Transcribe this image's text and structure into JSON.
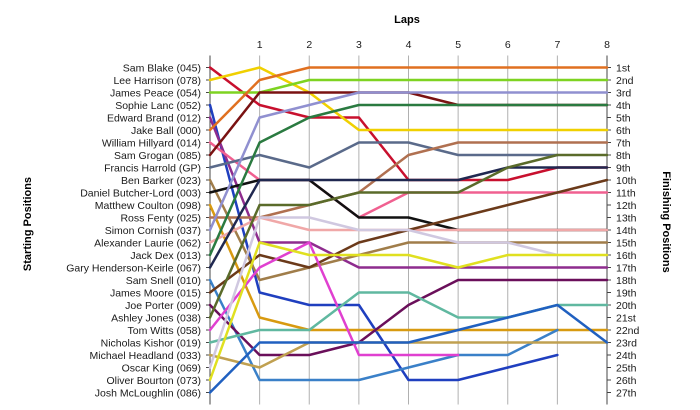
{
  "chart_data": {
    "type": "line",
    "title": "",
    "xlabel": "Laps",
    "ylabel_left": "Starting Positions",
    "ylabel_right": "Finishing Positions",
    "x": [
      0,
      1,
      2,
      3,
      4,
      5,
      6,
      7,
      8
    ],
    "x_tick_labels": [
      "1",
      "2",
      "3",
      "4",
      "5",
      "6",
      "7",
      "8"
    ],
    "xlim": [
      0,
      8
    ],
    "ylim": [
      1,
      27
    ],
    "y_inverted": true,
    "grid": "vertical",
    "left_labels": [
      "Sam Blake (045)",
      "Lee Harrison (078)",
      "James Peace (054)",
      "Sophie Lanc (052)",
      "Edward Brand (012)",
      "Jake Ball (000)",
      "William Hillyard (014)",
      "Sam Grogan (085)",
      "Francis Harrold (GP)",
      "Ben Barker (023)",
      "Daniel Butcher-Lord (003)",
      "Matthew Coulton (098)",
      "Ross Fenty (025)",
      "Simon Cornish (037)",
      "Alexander Laurie (062)",
      "Jack Dex (013)",
      "Gary Henderson-Keirle (067)",
      "Sam Snell (010)",
      "James Moore (015)",
      "Joe Porter (009)",
      "Ashley Jones (038)",
      "Tom Witts (058)",
      "Nicholas Kishor (019)",
      "Michael Headland (033)",
      "Oscar King (069)",
      "Oliver Bourton (073)",
      "Josh McLoughlin (086)"
    ],
    "right_labels": [
      "1st",
      "2nd",
      "3rd",
      "4th",
      "5th",
      "6th",
      "7th",
      "8th",
      "9th",
      "10th",
      "11th",
      "12th",
      "13th",
      "14th",
      "15th",
      "16th",
      "17th",
      "18th",
      "19th",
      "20th",
      "21st",
      "22nd",
      "23rd",
      "24th",
      "25th",
      "26th",
      "27th"
    ],
    "series": [
      {
        "color": "#c8102e",
        "values": [
          1,
          4,
          5,
          5,
          10,
          10,
          10,
          9,
          9
        ]
      },
      {
        "color": "#f0d000",
        "values": [
          2,
          1,
          3,
          6,
          6,
          6,
          6,
          6,
          6
        ]
      },
      {
        "color": "#7ed321",
        "values": [
          3,
          3,
          2,
          2,
          2,
          2,
          2,
          2,
          2
        ]
      },
      {
        "color": "#1f3fbf",
        "values": [
          4,
          19,
          20,
          20,
          26,
          26,
          25,
          24,
          null
        ]
      },
      {
        "color": "#8e2c8e",
        "values": [
          5,
          15,
          15,
          17,
          17,
          17,
          17,
          17,
          17
        ]
      },
      {
        "color": "#e07020",
        "values": [
          6,
          2,
          1,
          1,
          1,
          1,
          1,
          1,
          1
        ]
      },
      {
        "color": "#f06090",
        "values": [
          7,
          10,
          10,
          13,
          11,
          11,
          11,
          11,
          11
        ]
      },
      {
        "color": "#7a1212",
        "values": [
          8,
          3,
          3,
          3,
          3,
          4,
          4,
          4,
          4
        ]
      },
      {
        "color": "#5a6a8a",
        "values": [
          9,
          8,
          9,
          7,
          7,
          8,
          8,
          8,
          null
        ]
      },
      {
        "color": "#a07d4a",
        "values": [
          10,
          18,
          17,
          16,
          15,
          15,
          15,
          15,
          15
        ]
      },
      {
        "color": "#111111",
        "values": [
          11,
          10,
          10,
          13,
          13,
          14,
          14,
          14,
          14
        ]
      },
      {
        "color": "#d89a10",
        "values": [
          12,
          21,
          22,
          22,
          22,
          22,
          22,
          22,
          22
        ]
      },
      {
        "color": "#b07050",
        "values": [
          13,
          13,
          12,
          11,
          8,
          7,
          7,
          7,
          7
        ]
      },
      {
        "color": "#9090d0",
        "values": [
          14,
          5,
          4,
          3,
          3,
          3,
          3,
          3,
          3
        ]
      },
      {
        "color": "#f0a8a8",
        "values": [
          15,
          13,
          14,
          14,
          14,
          14,
          14,
          14,
          14
        ]
      },
      {
        "color": "#2a7a40",
        "values": [
          16,
          7,
          5,
          4,
          4,
          4,
          4,
          4,
          4
        ]
      },
      {
        "color": "#202850",
        "values": [
          17,
          10,
          10,
          10,
          10,
          10,
          9,
          9,
          9
        ]
      },
      {
        "color": "#3a80c8",
        "values": [
          18,
          26,
          26,
          26,
          25,
          24,
          24,
          22,
          null
        ]
      },
      {
        "color": "#6b3a1a",
        "values": [
          19,
          16,
          17,
          15,
          14,
          13,
          12,
          11,
          10
        ]
      },
      {
        "color": "#6a0f5a",
        "values": [
          20,
          24,
          24,
          23,
          20,
          18,
          18,
          18,
          18
        ]
      },
      {
        "color": "#5a6b2a",
        "values": [
          21,
          12,
          12,
          11,
          11,
          11,
          9,
          8,
          8
        ]
      },
      {
        "color": "#e040d0",
        "values": [
          22,
          17,
          15,
          24,
          24,
          24,
          null,
          null,
          null
        ]
      },
      {
        "color": "#60b8a0",
        "values": [
          23,
          22,
          22,
          19,
          19,
          21,
          21,
          20,
          20
        ]
      },
      {
        "color": "#c0a050",
        "values": [
          24,
          25,
          23,
          23,
          23,
          23,
          23,
          23,
          23
        ]
      },
      {
        "color": "#d0c8e0",
        "values": [
          25,
          13,
          13,
          14,
          14,
          15,
          15,
          16,
          null
        ]
      },
      {
        "color": "#e0e020",
        "values": [
          26,
          15,
          16,
          16,
          16,
          17,
          16,
          16,
          16
        ]
      },
      {
        "color": "#2060c0",
        "values": [
          27,
          23,
          23,
          23,
          23,
          22,
          21,
          20,
          23
        ]
      }
    ]
  }
}
